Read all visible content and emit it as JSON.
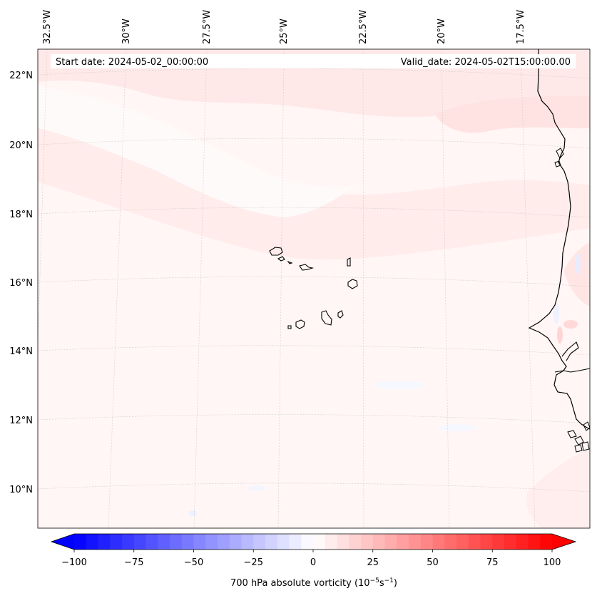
{
  "header": {
    "start_date": "Start date: 2024-05-02_00:00:00",
    "valid_date": "Valid_date: 2024-05-02T15:00:00.00"
  },
  "lon_labels": [
    "32.5°W",
    "30°W",
    "27.5°W",
    "25°W",
    "22.5°W",
    "20°W",
    "17.5°W"
  ],
  "lat_labels": [
    "22°N",
    "20°N",
    "18°N",
    "16°N",
    "14°N",
    "12°N",
    "10°N"
  ],
  "colorbar": {
    "ticks": [
      "−100",
      "−75",
      "−50",
      "−25",
      "0",
      "25",
      "50",
      "75",
      "100"
    ],
    "title": "700 hPa absolute vorticity (10",
    "title_exp1": "−5",
    "title_mid": "s",
    "title_exp2": "−1",
    "title_end": ")",
    "min": -100,
    "max": 100,
    "levels": 40
  },
  "colors": {
    "negative_max": "#0000ff",
    "positive_max": "#ff0000",
    "coast": "#000000"
  }
}
